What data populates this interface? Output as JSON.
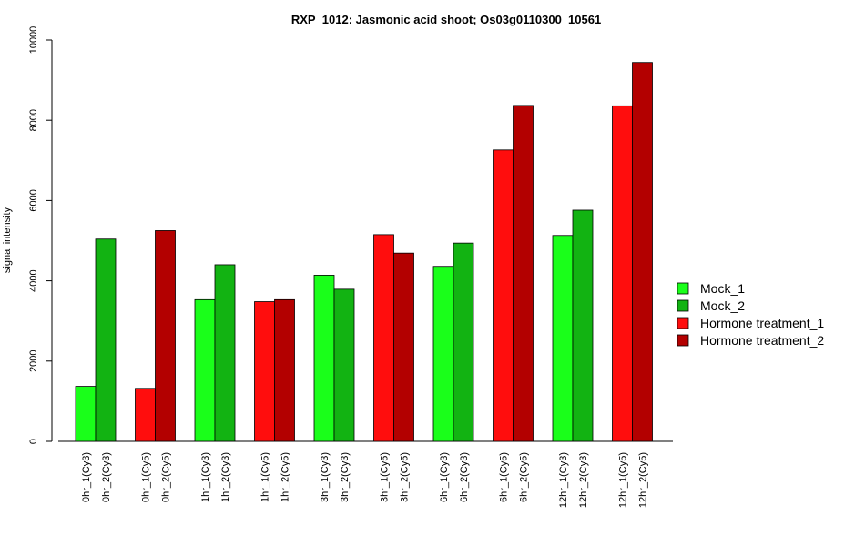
{
  "chart_data": {
    "type": "bar",
    "title": "RXP_1012: Jasmonic acid shoot; Os03g0110300_10561",
    "ylabel": "signal intensity",
    "xlabel": "",
    "ylim": [
      0,
      10000
    ],
    "yticks": [
      0,
      2000,
      4000,
      6000,
      8000,
      10000
    ],
    "grid": false,
    "legend_position": "right",
    "series": [
      {
        "name": "Mock_1",
        "color": "#1aff1a"
      },
      {
        "name": "Mock_2",
        "color": "#12b312"
      },
      {
        "name": "Hormone treatment_1",
        "color": "#ff0d0d"
      },
      {
        "name": "Hormone treatment_2",
        "color": "#b30000"
      }
    ],
    "groups": [
      {
        "bars": [
          {
            "label": "0hr_1(Cy3)",
            "value": 1370,
            "series": 0
          },
          {
            "label": "0hr_2(Cy3)",
            "value": 5040,
            "series": 1
          }
        ]
      },
      {
        "bars": [
          {
            "label": "0hr_1(Cy5)",
            "value": 1320,
            "series": 2
          },
          {
            "label": "0hr_2(Cy5)",
            "value": 5250,
            "series": 3
          }
        ]
      },
      {
        "bars": [
          {
            "label": "1hr_1(Cy3)",
            "value": 3530,
            "series": 0
          },
          {
            "label": "1hr_2(Cy3)",
            "value": 4400,
            "series": 1
          }
        ]
      },
      {
        "bars": [
          {
            "label": "1hr_1(Cy5)",
            "value": 3480,
            "series": 2
          },
          {
            "label": "1hr_2(Cy5)",
            "value": 3530,
            "series": 3
          }
        ]
      },
      {
        "bars": [
          {
            "label": "3hr_1(Cy3)",
            "value": 4140,
            "series": 0
          },
          {
            "label": "3hr_2(Cy3)",
            "value": 3790,
            "series": 1
          }
        ]
      },
      {
        "bars": [
          {
            "label": "3hr_1(Cy5)",
            "value": 5150,
            "series": 2
          },
          {
            "label": "3hr_2(Cy5)",
            "value": 4690,
            "series": 3
          }
        ]
      },
      {
        "bars": [
          {
            "label": "6hr_1(Cy3)",
            "value": 4360,
            "series": 0
          },
          {
            "label": "6hr_2(Cy3)",
            "value": 4940,
            "series": 1
          }
        ]
      },
      {
        "bars": [
          {
            "label": "6hr_1(Cy5)",
            "value": 7260,
            "series": 2
          },
          {
            "label": "6hr_2(Cy5)",
            "value": 8370,
            "series": 3
          }
        ]
      },
      {
        "bars": [
          {
            "label": "12hr_1(Cy3)",
            "value": 5130,
            "series": 0
          },
          {
            "label": "12hr_2(Cy3)",
            "value": 5760,
            "series": 1
          }
        ]
      },
      {
        "bars": [
          {
            "label": "12hr_1(Cy5)",
            "value": 8360,
            "series": 2
          },
          {
            "label": "12hr_2(Cy5)",
            "value": 9440,
            "series": 3
          }
        ]
      }
    ]
  }
}
